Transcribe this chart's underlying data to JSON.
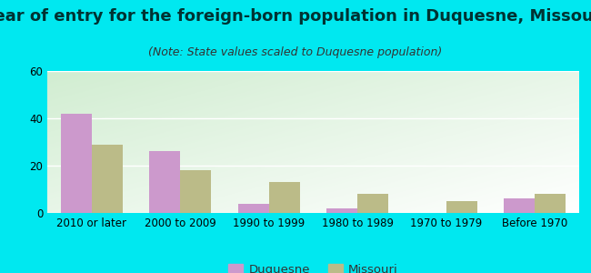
{
  "title": "Year of entry for the foreign-born population in Duquesne, Missouri",
  "subtitle": "(Note: State values scaled to Duquesne population)",
  "categories": [
    "2010 or later",
    "2000 to 2009",
    "1990 to 1999",
    "1980 to 1989",
    "1970 to 1979",
    "Before 1970"
  ],
  "duquesne_values": [
    42,
    26,
    4,
    2,
    0,
    6
  ],
  "missouri_values": [
    29,
    18,
    13,
    8,
    5,
    8
  ],
  "duquesne_color": "#cc99cc",
  "missouri_color": "#bbbb88",
  "ylim": [
    0,
    60
  ],
  "yticks": [
    0,
    20,
    40,
    60
  ],
  "background_outer": "#00e8f0",
  "bar_width": 0.35,
  "legend_labels": [
    "Duquesne",
    "Missouri"
  ],
  "title_fontsize": 13,
  "subtitle_fontsize": 9,
  "tick_fontsize": 8.5
}
